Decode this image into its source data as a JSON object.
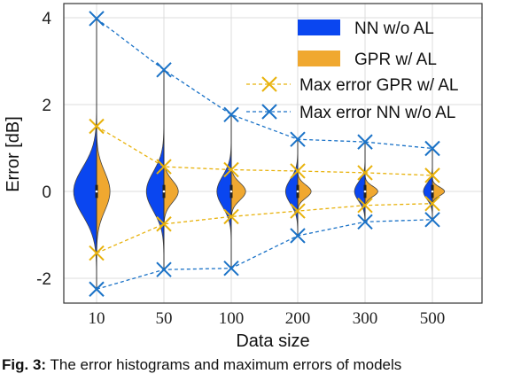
{
  "chart_data": {
    "type": "violin",
    "xlabel": "Data size",
    "ylabel": "Error [dB]",
    "categories": [
      "10",
      "50",
      "100",
      "200",
      "300",
      "500"
    ],
    "yticks": [
      "-2",
      "0",
      "2",
      "4"
    ],
    "ylim": [
      -2.55,
      4.15
    ],
    "grid": true,
    "legend_position": "top-right",
    "distributions": [
      {
        "name": "NN w/o AL",
        "color": "#0a46f0",
        "side": "left",
        "widths": [
          0.72,
          0.55,
          0.45,
          0.38,
          0.33,
          0.28
        ],
        "spreads": [
          0.55,
          0.45,
          0.35,
          0.28,
          0.22,
          0.18
        ]
      },
      {
        "name": "GPR w/ AL",
        "color": "#f0a830",
        "side": "right",
        "widths": [
          0.42,
          0.45,
          0.45,
          0.42,
          0.4,
          0.38
        ],
        "spreads": [
          0.45,
          0.25,
          0.2,
          0.15,
          0.12,
          0.1
        ]
      }
    ],
    "series": [
      {
        "name": "Max error GPR w/ AL",
        "color": "#e8b20c",
        "upper": [
          1.5,
          0.57,
          0.5,
          0.47,
          0.43,
          0.37
        ],
        "lower": [
          -1.42,
          -0.75,
          -0.58,
          -0.45,
          -0.32,
          -0.28
        ]
      },
      {
        "name": "Max error NN w/o AL",
        "color": "#1a72c7",
        "upper": [
          3.98,
          2.8,
          1.77,
          1.2,
          1.14,
          0.99
        ],
        "lower": [
          -2.25,
          -1.8,
          -1.77,
          -1.02,
          -0.7,
          -0.65
        ]
      }
    ]
  },
  "caption": {
    "bold": "Fig. 3:",
    "text": " The error histograms and maximum errors of models"
  }
}
